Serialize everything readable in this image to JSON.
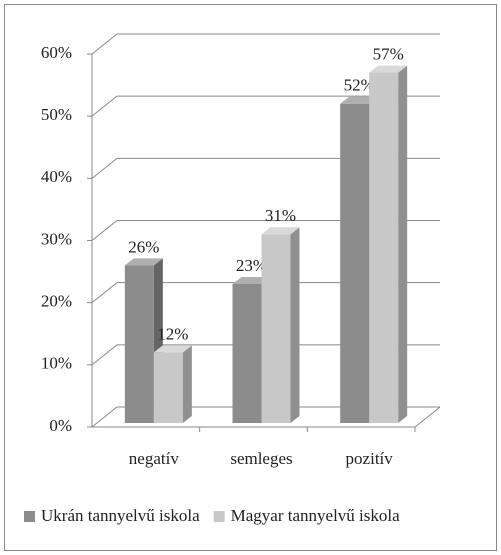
{
  "chart_data": {
    "type": "bar3d",
    "categories": [
      "negatív",
      "semleges",
      "pozitív"
    ],
    "series": [
      {
        "name": "Ukrán tannyelvű iskola",
        "color": "#8c8c8c",
        "values": [
          26,
          23,
          52
        ],
        "value_labels": [
          "26%",
          "23%",
          "52%"
        ]
      },
      {
        "name": "Magyar tannyelvű iskola",
        "color": "#c8c8c8",
        "values": [
          12,
          31,
          57
        ],
        "value_labels": [
          "12%",
          "31%",
          "57%"
        ]
      }
    ],
    "ylim": [
      0,
      60
    ],
    "yticks": [
      {
        "value": 0,
        "label": "0%"
      },
      {
        "value": 10,
        "label": "10%"
      },
      {
        "value": 20,
        "label": "20%"
      },
      {
        "value": 30,
        "label": "30%"
      },
      {
        "value": 40,
        "label": "40%"
      },
      {
        "value": 50,
        "label": "50%"
      },
      {
        "value": 60,
        "label": "60%"
      }
    ],
    "grid": true,
    "legend": "bottom"
  }
}
